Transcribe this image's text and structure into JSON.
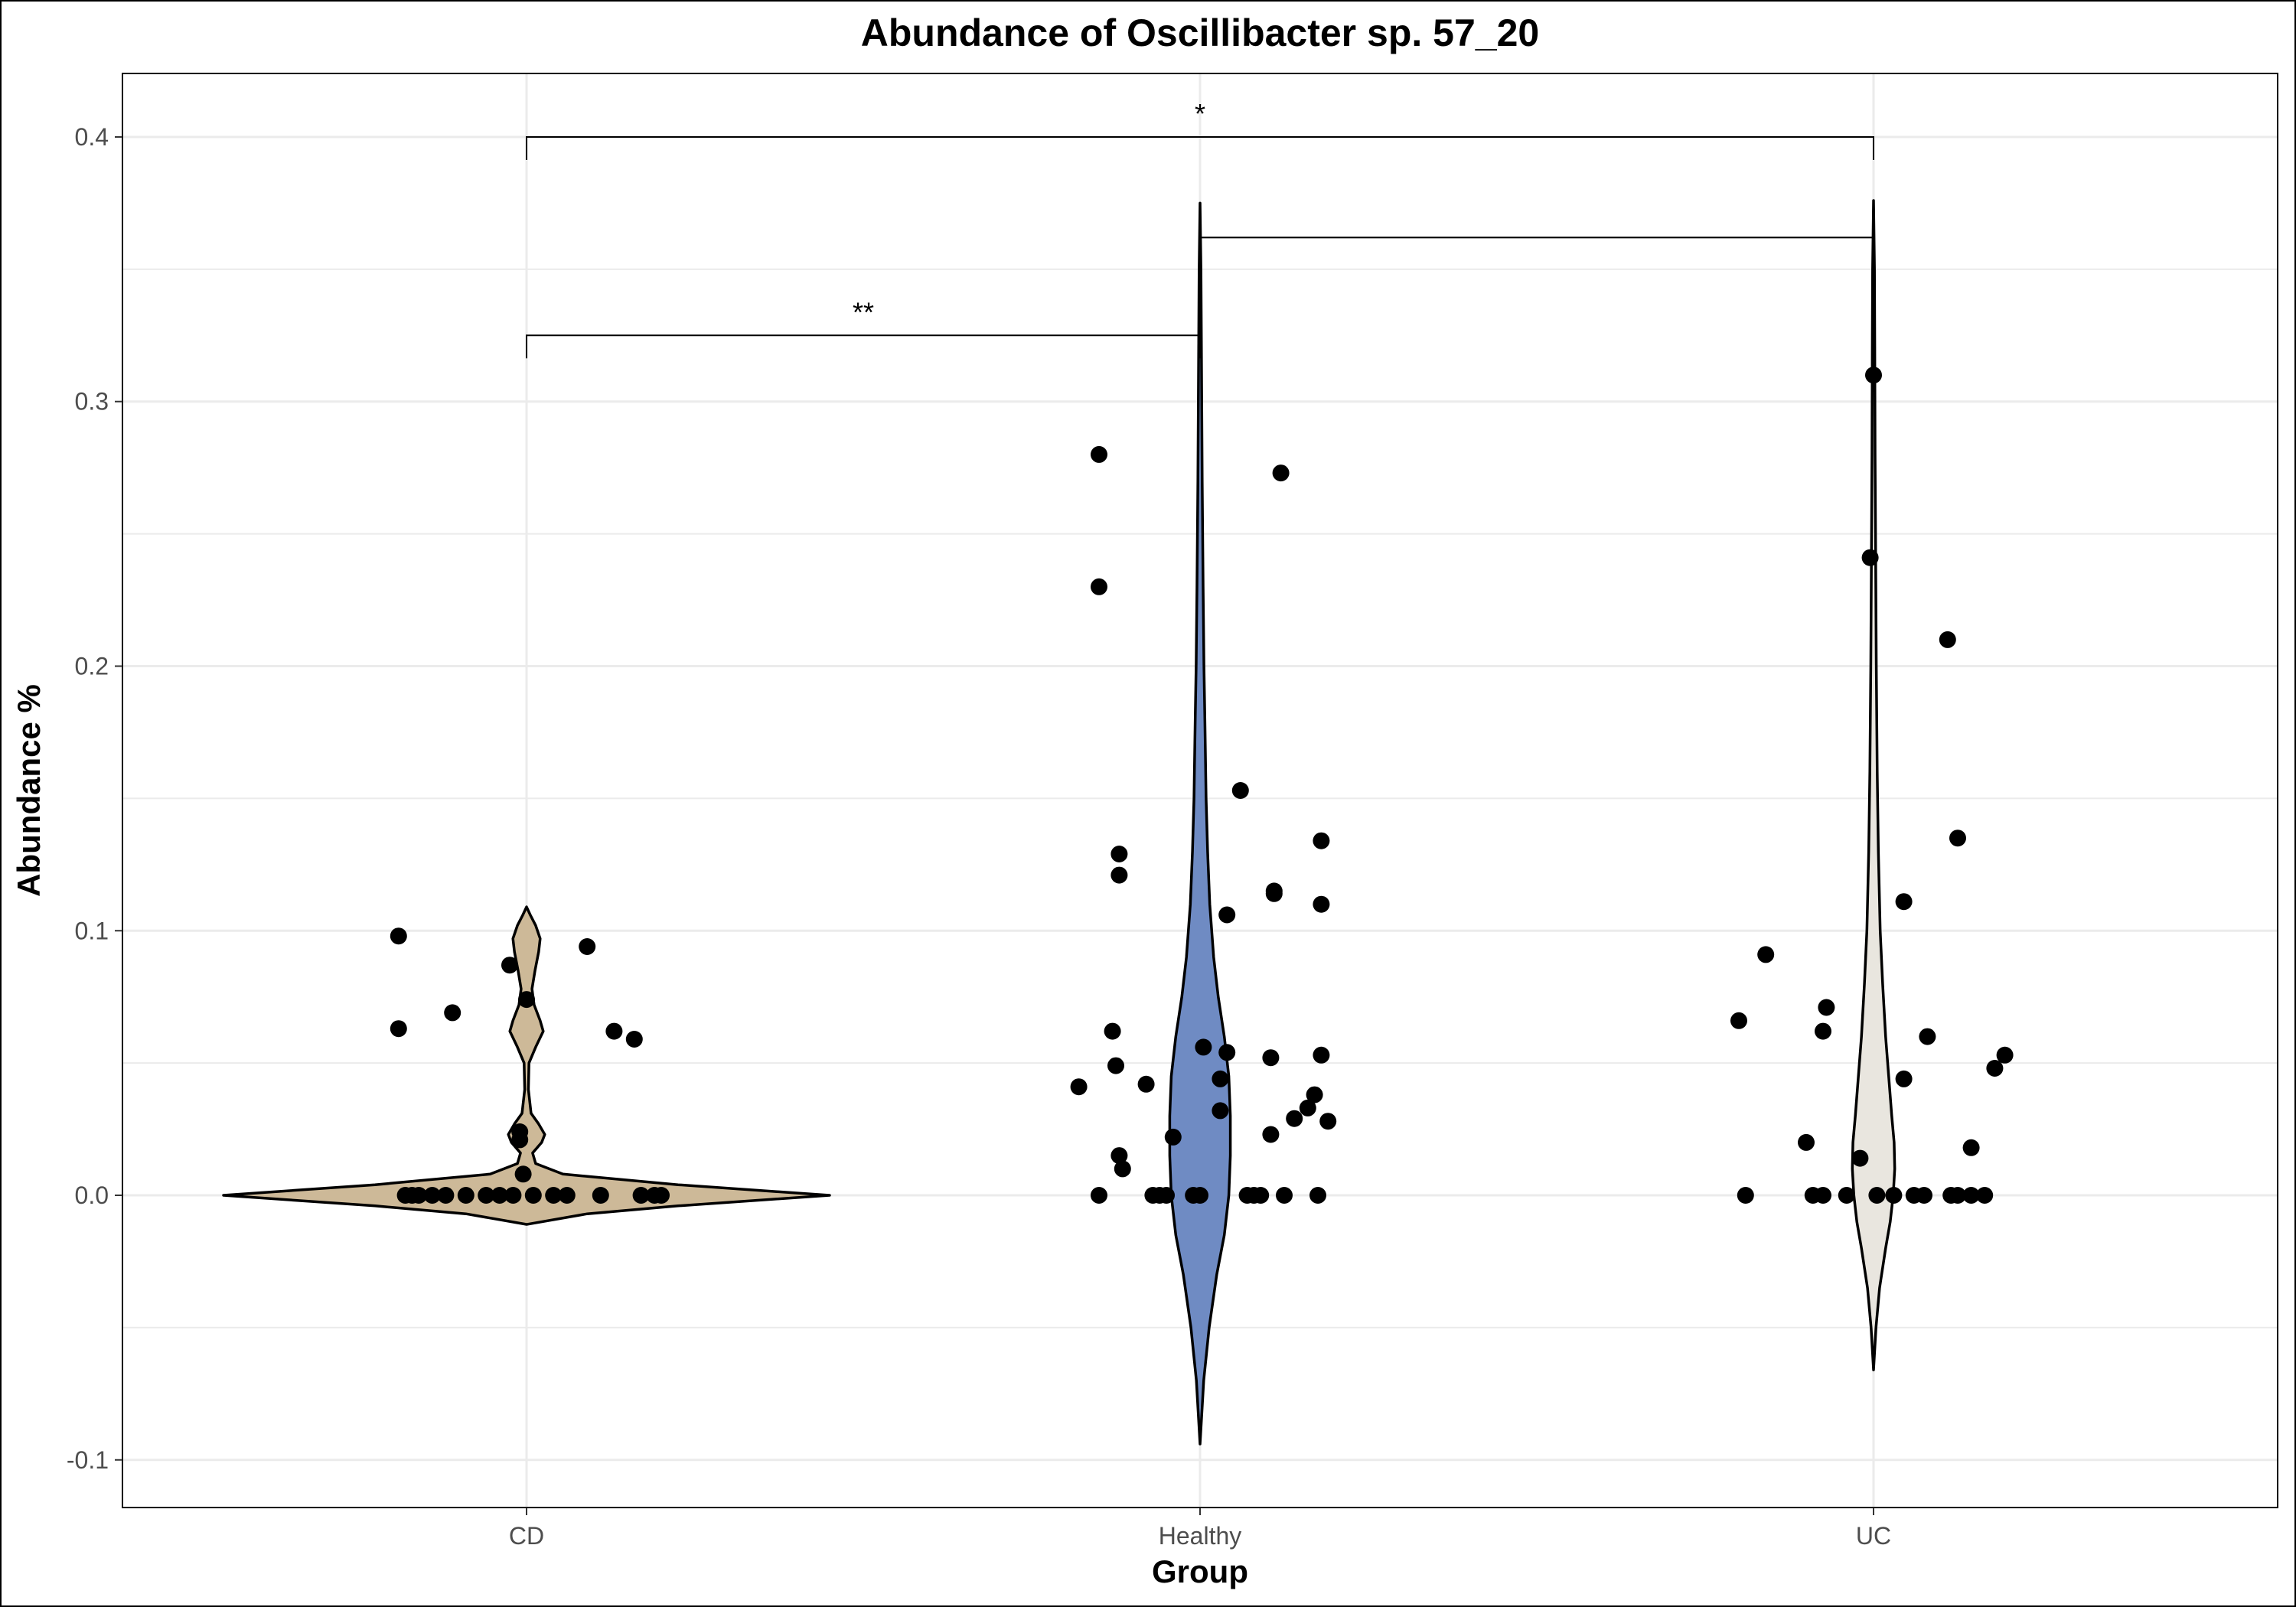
{
  "chart_data": {
    "type": "violin",
    "title": "Abundance of Oscillibacter sp. 57_20",
    "xlabel": "Group",
    "ylabel": "Abundance %",
    "categories": [
      "CD",
      "Healthy",
      "UC"
    ],
    "ylim": [
      -0.118,
      0.424
    ],
    "yticks": [
      -0.1,
      0.0,
      0.1,
      0.2,
      0.3,
      0.4
    ],
    "ytick_labels": [
      "-0.1",
      "0.0",
      "0.1",
      "0.2",
      "0.3",
      "0.4"
    ],
    "grid": true,
    "legend": "none",
    "colors": {
      "CD": "#cdb998",
      "Healthy": "#6f8bc3",
      "UC": "#e9e6df"
    },
    "violins": [
      {
        "group": "CD",
        "range": [
          -0.011,
          0.109
        ],
        "profile": [
          [
            -0.011,
            0.0
          ],
          [
            -0.007,
            0.2
          ],
          [
            -0.004,
            0.5
          ],
          [
            0.0,
            1.0
          ],
          [
            0.004,
            0.5
          ],
          [
            0.008,
            0.12
          ],
          [
            0.012,
            0.03
          ],
          [
            0.016,
            0.02
          ],
          [
            0.02,
            0.05
          ],
          [
            0.023,
            0.06
          ],
          [
            0.027,
            0.04
          ],
          [
            0.031,
            0.015
          ],
          [
            0.04,
            0.006
          ],
          [
            0.05,
            0.008
          ],
          [
            0.056,
            0.03
          ],
          [
            0.062,
            0.055
          ],
          [
            0.066,
            0.045
          ],
          [
            0.072,
            0.025
          ],
          [
            0.078,
            0.018
          ],
          [
            0.085,
            0.028
          ],
          [
            0.092,
            0.04
          ],
          [
            0.097,
            0.045
          ],
          [
            0.102,
            0.03
          ],
          [
            0.106,
            0.012
          ],
          [
            0.109,
            0.0
          ]
        ]
      },
      {
        "group": "Healthy",
        "range": [
          -0.094,
          0.375
        ],
        "profile": [
          [
            -0.094,
            0.0
          ],
          [
            -0.07,
            0.012
          ],
          [
            -0.05,
            0.03
          ],
          [
            -0.03,
            0.055
          ],
          [
            -0.015,
            0.08
          ],
          [
            0.0,
            0.095
          ],
          [
            0.015,
            0.1
          ],
          [
            0.03,
            0.1
          ],
          [
            0.045,
            0.095
          ],
          [
            0.06,
            0.08
          ],
          [
            0.075,
            0.06
          ],
          [
            0.09,
            0.045
          ],
          [
            0.11,
            0.032
          ],
          [
            0.13,
            0.025
          ],
          [
            0.15,
            0.02
          ],
          [
            0.18,
            0.016
          ],
          [
            0.2,
            0.013
          ],
          [
            0.23,
            0.01
          ],
          [
            0.27,
            0.007
          ],
          [
            0.31,
            0.005
          ],
          [
            0.35,
            0.003
          ],
          [
            0.375,
            0.0
          ]
        ]
      },
      {
        "group": "UC",
        "range": [
          -0.066,
          0.376
        ],
        "profile": [
          [
            -0.066,
            0.0
          ],
          [
            -0.05,
            0.008
          ],
          [
            -0.035,
            0.02
          ],
          [
            -0.02,
            0.04
          ],
          [
            -0.01,
            0.055
          ],
          [
            0.0,
            0.065
          ],
          [
            0.01,
            0.07
          ],
          [
            0.02,
            0.068
          ],
          [
            0.03,
            0.06
          ],
          [
            0.045,
            0.05
          ],
          [
            0.06,
            0.04
          ],
          [
            0.08,
            0.03
          ],
          [
            0.1,
            0.022
          ],
          [
            0.13,
            0.016
          ],
          [
            0.16,
            0.012
          ],
          [
            0.2,
            0.009
          ],
          [
            0.24,
            0.007
          ],
          [
            0.28,
            0.005
          ],
          [
            0.32,
            0.004
          ],
          [
            0.35,
            0.003
          ],
          [
            0.376,
            0.0
          ]
        ]
      }
    ],
    "points": [
      {
        "group": "CD",
        "offset": -0.19,
        "y": 0.098
      },
      {
        "group": "CD",
        "offset": -0.19,
        "y": 0.063
      },
      {
        "group": "CD",
        "offset": -0.11,
        "y": 0.069
      },
      {
        "group": "CD",
        "offset": -0.025,
        "y": 0.087
      },
      {
        "group": "CD",
        "offset": 0.0,
        "y": 0.074
      },
      {
        "group": "CD",
        "offset": 0.09,
        "y": 0.094
      },
      {
        "group": "CD",
        "offset": 0.13,
        "y": 0.062
      },
      {
        "group": "CD",
        "offset": 0.16,
        "y": 0.059
      },
      {
        "group": "CD",
        "offset": -0.01,
        "y": 0.024
      },
      {
        "group": "CD",
        "offset": -0.01,
        "y": 0.021
      },
      {
        "group": "CD",
        "offset": -0.005,
        "y": 0.008
      },
      {
        "group": "CD",
        "offset": -0.18,
        "y": 0.0
      },
      {
        "group": "CD",
        "offset": -0.17,
        "y": 0.0
      },
      {
        "group": "CD",
        "offset": -0.16,
        "y": 0.0
      },
      {
        "group": "CD",
        "offset": -0.14,
        "y": 0.0
      },
      {
        "group": "CD",
        "offset": -0.12,
        "y": 0.0
      },
      {
        "group": "CD",
        "offset": -0.09,
        "y": 0.0
      },
      {
        "group": "CD",
        "offset": -0.06,
        "y": 0.0
      },
      {
        "group": "CD",
        "offset": -0.04,
        "y": 0.0
      },
      {
        "group": "CD",
        "offset": -0.02,
        "y": 0.0
      },
      {
        "group": "CD",
        "offset": 0.01,
        "y": 0.0
      },
      {
        "group": "CD",
        "offset": 0.04,
        "y": 0.0
      },
      {
        "group": "CD",
        "offset": 0.06,
        "y": 0.0
      },
      {
        "group": "CD",
        "offset": 0.11,
        "y": 0.0
      },
      {
        "group": "CD",
        "offset": 0.17,
        "y": 0.0
      },
      {
        "group": "CD",
        "offset": 0.19,
        "y": 0.0
      },
      {
        "group": "CD",
        "offset": 0.2,
        "y": 0.0
      },
      {
        "group": "Healthy",
        "offset": -0.15,
        "y": 0.28
      },
      {
        "group": "Healthy",
        "offset": -0.15,
        "y": 0.23
      },
      {
        "group": "Healthy",
        "offset": 0.12,
        "y": 0.273
      },
      {
        "group": "Healthy",
        "offset": 0.06,
        "y": 0.153
      },
      {
        "group": "Healthy",
        "offset": -0.12,
        "y": 0.129
      },
      {
        "group": "Healthy",
        "offset": -0.12,
        "y": 0.121
      },
      {
        "group": "Healthy",
        "offset": 0.18,
        "y": 0.134
      },
      {
        "group": "Healthy",
        "offset": 0.11,
        "y": 0.115
      },
      {
        "group": "Healthy",
        "offset": 0.11,
        "y": 0.114
      },
      {
        "group": "Healthy",
        "offset": 0.18,
        "y": 0.11
      },
      {
        "group": "Healthy",
        "offset": 0.04,
        "y": 0.106
      },
      {
        "group": "Healthy",
        "offset": -0.13,
        "y": 0.062
      },
      {
        "group": "Healthy",
        "offset": 0.005,
        "y": 0.056
      },
      {
        "group": "Healthy",
        "offset": 0.04,
        "y": 0.054
      },
      {
        "group": "Healthy",
        "offset": 0.105,
        "y": 0.052
      },
      {
        "group": "Healthy",
        "offset": 0.18,
        "y": 0.053
      },
      {
        "group": "Healthy",
        "offset": -0.125,
        "y": 0.049
      },
      {
        "group": "Healthy",
        "offset": 0.03,
        "y": 0.044
      },
      {
        "group": "Healthy",
        "offset": -0.08,
        "y": 0.042
      },
      {
        "group": "Healthy",
        "offset": -0.18,
        "y": 0.041
      },
      {
        "group": "Healthy",
        "offset": 0.17,
        "y": 0.038
      },
      {
        "group": "Healthy",
        "offset": 0.16,
        "y": 0.033
      },
      {
        "group": "Healthy",
        "offset": 0.03,
        "y": 0.032
      },
      {
        "group": "Healthy",
        "offset": 0.14,
        "y": 0.029
      },
      {
        "group": "Healthy",
        "offset": 0.19,
        "y": 0.028
      },
      {
        "group": "Healthy",
        "offset": 0.105,
        "y": 0.023
      },
      {
        "group": "Healthy",
        "offset": -0.04,
        "y": 0.022
      },
      {
        "group": "Healthy",
        "offset": -0.12,
        "y": 0.015
      },
      {
        "group": "Healthy",
        "offset": -0.115,
        "y": 0.01
      },
      {
        "group": "Healthy",
        "offset": -0.15,
        "y": 0.0
      },
      {
        "group": "Healthy",
        "offset": -0.07,
        "y": 0.0
      },
      {
        "group": "Healthy",
        "offset": -0.06,
        "y": 0.0
      },
      {
        "group": "Healthy",
        "offset": -0.05,
        "y": 0.0
      },
      {
        "group": "Healthy",
        "offset": -0.01,
        "y": 0.0
      },
      {
        "group": "Healthy",
        "offset": 0.0,
        "y": 0.0
      },
      {
        "group": "Healthy",
        "offset": 0.07,
        "y": 0.0
      },
      {
        "group": "Healthy",
        "offset": 0.08,
        "y": 0.0
      },
      {
        "group": "Healthy",
        "offset": 0.09,
        "y": 0.0
      },
      {
        "group": "Healthy",
        "offset": 0.125,
        "y": 0.0
      },
      {
        "group": "Healthy",
        "offset": 0.175,
        "y": 0.0
      },
      {
        "group": "UC",
        "offset": 0.0,
        "y": 0.31
      },
      {
        "group": "UC",
        "offset": -0.005,
        "y": 0.241
      },
      {
        "group": "UC",
        "offset": 0.11,
        "y": 0.21
      },
      {
        "group": "UC",
        "offset": 0.125,
        "y": 0.135
      },
      {
        "group": "UC",
        "offset": 0.045,
        "y": 0.111
      },
      {
        "group": "UC",
        "offset": -0.16,
        "y": 0.091
      },
      {
        "group": "UC",
        "offset": -0.07,
        "y": 0.071
      },
      {
        "group": "UC",
        "offset": -0.2,
        "y": 0.066
      },
      {
        "group": "UC",
        "offset": -0.075,
        "y": 0.062
      },
      {
        "group": "UC",
        "offset": 0.08,
        "y": 0.06
      },
      {
        "group": "UC",
        "offset": 0.195,
        "y": 0.053
      },
      {
        "group": "UC",
        "offset": 0.18,
        "y": 0.048
      },
      {
        "group": "UC",
        "offset": 0.045,
        "y": 0.044
      },
      {
        "group": "UC",
        "offset": -0.1,
        "y": 0.02
      },
      {
        "group": "UC",
        "offset": 0.145,
        "y": 0.018
      },
      {
        "group": "UC",
        "offset": -0.02,
        "y": 0.014
      },
      {
        "group": "UC",
        "offset": -0.19,
        "y": 0.0
      },
      {
        "group": "UC",
        "offset": -0.09,
        "y": 0.0
      },
      {
        "group": "UC",
        "offset": -0.075,
        "y": 0.0
      },
      {
        "group": "UC",
        "offset": -0.04,
        "y": 0.0
      },
      {
        "group": "UC",
        "offset": 0.005,
        "y": 0.0
      },
      {
        "group": "UC",
        "offset": 0.03,
        "y": 0.0
      },
      {
        "group": "UC",
        "offset": 0.06,
        "y": 0.0
      },
      {
        "group": "UC",
        "offset": 0.075,
        "y": 0.0
      },
      {
        "group": "UC",
        "offset": 0.115,
        "y": 0.0
      },
      {
        "group": "UC",
        "offset": 0.125,
        "y": 0.0
      },
      {
        "group": "UC",
        "offset": 0.145,
        "y": 0.0
      },
      {
        "group": "UC",
        "offset": 0.165,
        "y": 0.0
      }
    ],
    "significance": [
      {
        "from": "CD",
        "to": "Healthy",
        "y": 0.325,
        "label": "**"
      },
      {
        "from": "Healthy",
        "to": "UC",
        "y": 0.362,
        "label": ""
      },
      {
        "from": "CD",
        "to": "UC",
        "y": 0.4,
        "label": "*"
      }
    ]
  }
}
